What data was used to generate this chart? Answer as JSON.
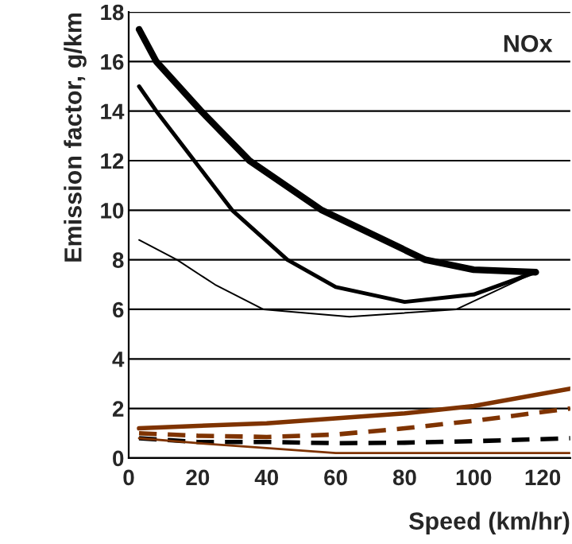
{
  "chart_data": {
    "type": "line",
    "xlabel": "Speed (km/hr)",
    "ylabel": "Emission factor, g/km",
    "annotations": [
      "NOx"
    ],
    "xlim": [
      0,
      128
    ],
    "xticks": [
      0,
      20,
      40,
      60,
      80,
      100,
      120
    ],
    "ylim": [
      0,
      18
    ],
    "yticks": [
      0,
      2,
      4,
      6,
      8,
      10,
      12,
      14,
      16,
      18
    ],
    "grid": "y",
    "legend": false,
    "series": [
      {
        "color": "#000000",
        "line_style": "solid",
        "x": [
          3,
          8,
          21,
          35,
          56,
          86,
          100,
          118
        ],
        "values": [
          17.3,
          16,
          14,
          12,
          10,
          8,
          7.6,
          7.5
        ]
      },
      {
        "color": "#000000",
        "line_style": "solid",
        "x": [
          3,
          8,
          19,
          30,
          46,
          60,
          80,
          100,
          118
        ],
        "values": [
          15.0,
          14,
          12,
          10,
          8,
          6.9,
          6.3,
          6.6,
          7.5
        ]
      },
      {
        "color": "#000000",
        "line_style": "solid",
        "x": [
          3,
          14,
          25,
          39,
          64,
          95,
          118
        ],
        "values": [
          8.8,
          8,
          7,
          6,
          5.7,
          6,
          7.5
        ]
      },
      {
        "color": "#7f3300",
        "line_style": "solid",
        "x": [
          3,
          20,
          40,
          60,
          80,
          100,
          128
        ],
        "values": [
          1.2,
          1.3,
          1.4,
          1.6,
          1.8,
          2.1,
          2.8
        ]
      },
      {
        "color": "#7f3300",
        "line_style": "dashed",
        "x": [
          3,
          20,
          40,
          60,
          80,
          100,
          128
        ],
        "values": [
          1.0,
          0.9,
          0.85,
          0.95,
          1.2,
          1.5,
          2.0
        ]
      },
      {
        "color": "#000000",
        "line_style": "dashed",
        "x": [
          3,
          20,
          40,
          60,
          80,
          100,
          128
        ],
        "values": [
          0.8,
          0.65,
          0.65,
          0.6,
          0.62,
          0.68,
          0.8
        ]
      },
      {
        "color": "#7f3300",
        "line_style": "solid",
        "x": [
          3,
          20,
          40,
          60,
          80,
          100,
          128
        ],
        "values": [
          0.8,
          0.6,
          0.4,
          0.2,
          0.2,
          0.2,
          0.2
        ]
      }
    ]
  }
}
